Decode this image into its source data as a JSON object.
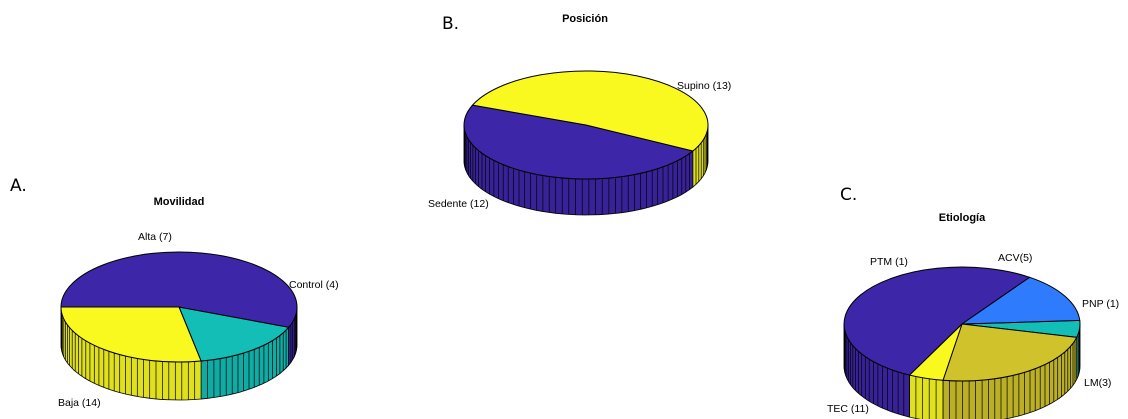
{
  "chart_data": [
    {
      "type": "pie",
      "panel": "A.",
      "title": "Movilidad",
      "slices": [
        {
          "label": "Control (4)",
          "value": 4,
          "color": "#13BEB7"
        },
        {
          "label": "Alta (7)",
          "value": 7,
          "color": "#F9F920"
        },
        {
          "label": "Baja (14)",
          "value": 14,
          "color": "#3E26A8"
        }
      ]
    },
    {
      "type": "pie",
      "panel": "B.",
      "title": "Posición",
      "slices": [
        {
          "label": "Sedente (12)",
          "value": 12,
          "color": "#3E26A8"
        },
        {
          "label": "Supino (13)",
          "value": 13,
          "color": "#F9F920"
        }
      ]
    },
    {
      "type": "pie",
      "panel": "C.",
      "title": "Etiología",
      "slices": [
        {
          "label": "PNP (1)",
          "value": 1,
          "color": "#13BEB7"
        },
        {
          "label": "ACV(5)",
          "value": 5,
          "color": "#CFC22A"
        },
        {
          "label": "PTM (1)",
          "value": 1,
          "color": "#F9F920"
        },
        {
          "label": "TEC (11)",
          "value": 11,
          "color": "#3E26A8"
        },
        {
          "label": "LM(3)",
          "value": 3,
          "color": "#2E7BFE"
        }
      ]
    }
  ]
}
